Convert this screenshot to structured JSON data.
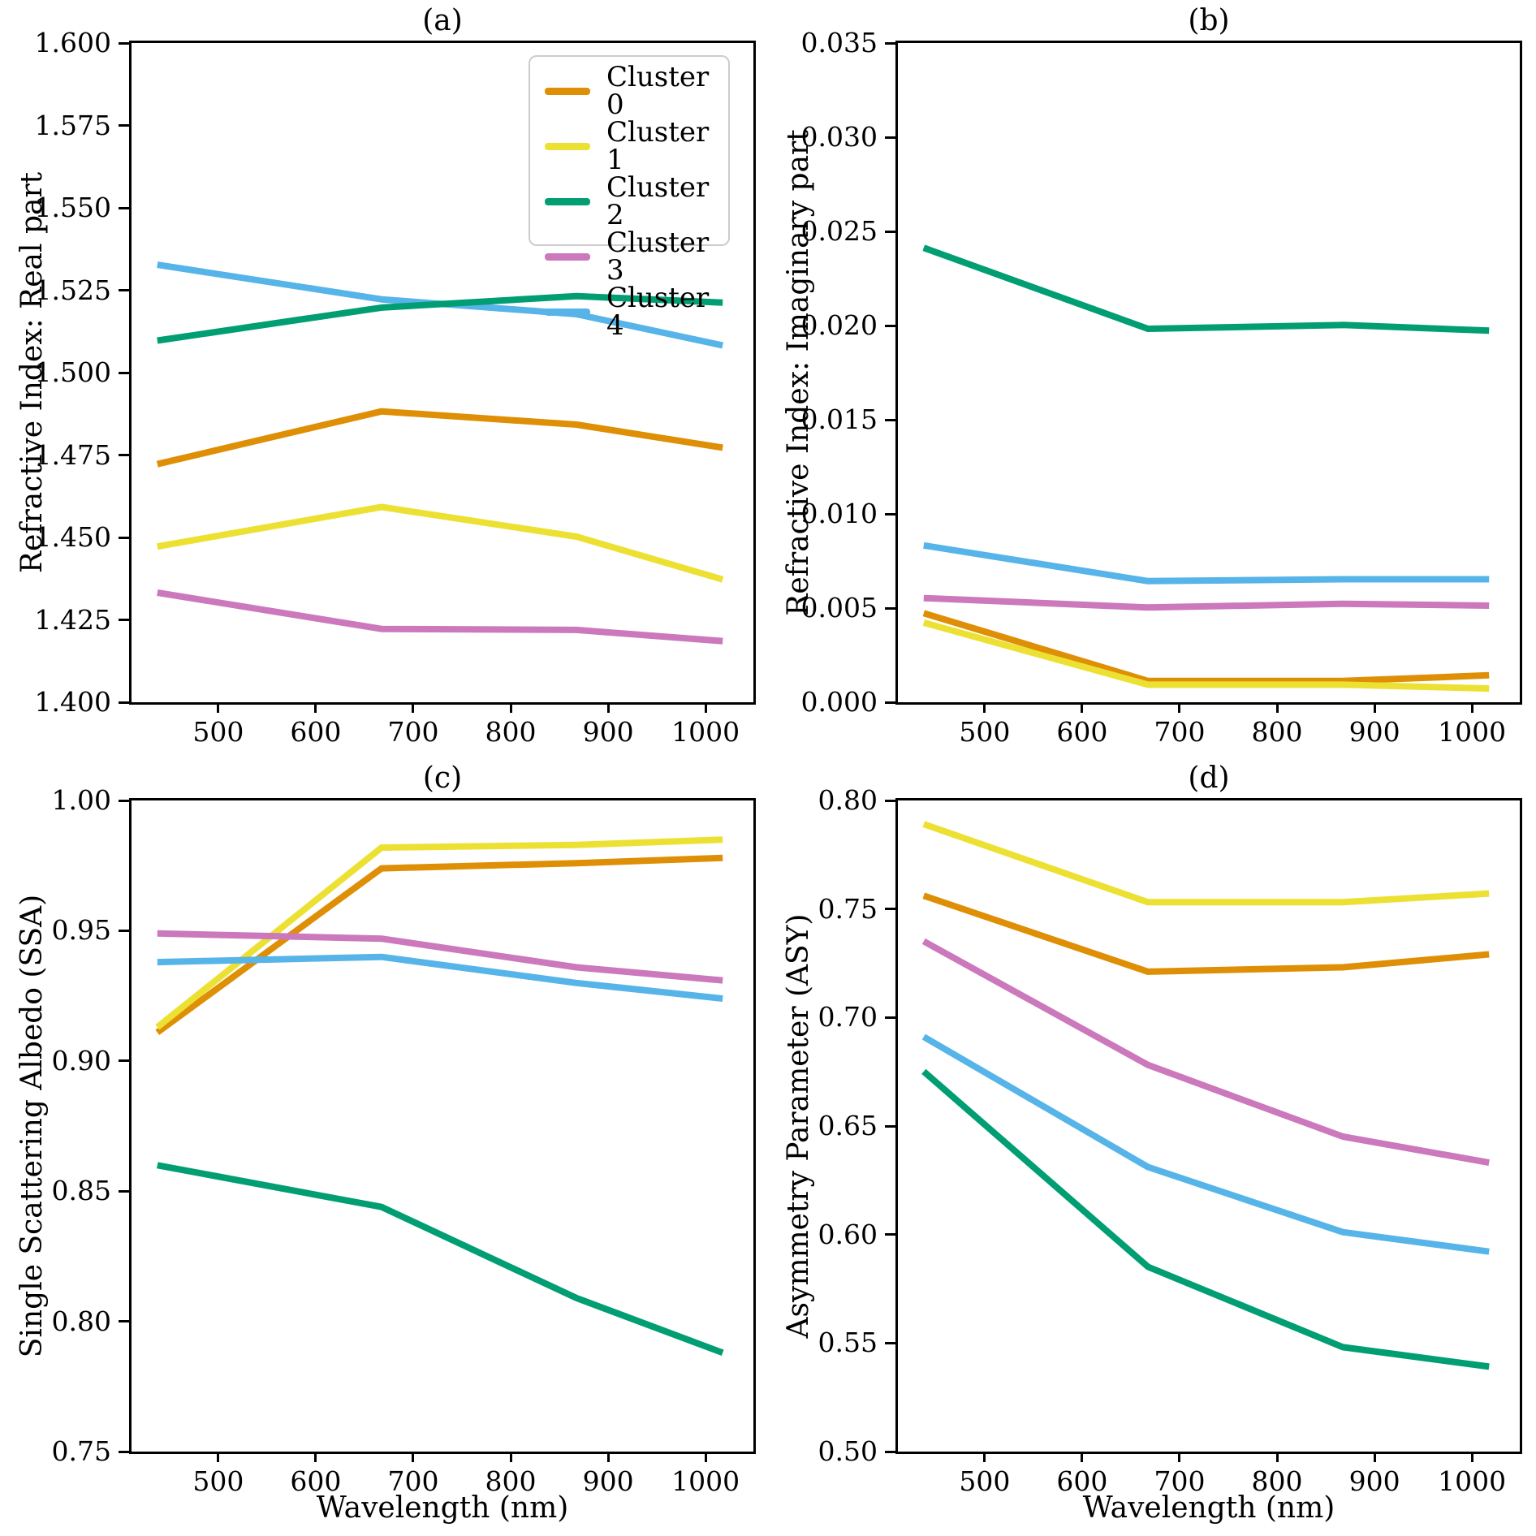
{
  "figure": {
    "background": "#ffffff",
    "text_color": "#000000"
  },
  "legend": {
    "position": "upper-right-panel-a",
    "items": [
      {
        "label": "Cluster 0",
        "color": "#DE8F05"
      },
      {
        "label": "Cluster 1",
        "color": "#ECE133"
      },
      {
        "label": "Cluster 2",
        "color": "#029E73"
      },
      {
        "label": "Cluster 3",
        "color": "#CC78BC"
      },
      {
        "label": "Cluster 4",
        "color": "#56B4E9"
      }
    ]
  },
  "chart_data": [
    {
      "id": "a",
      "type": "line",
      "title": "(a)",
      "ylabel": "Refractive Index: Real part",
      "xlabel": null,
      "x": [
        440,
        670,
        870,
        1020
      ],
      "xlim": [
        411,
        1049
      ],
      "ylim": [
        1.4,
        1.6
      ],
      "xticks": [
        "500",
        "600",
        "700",
        "800",
        "900",
        "1000"
      ],
      "yticks": [
        "1.400",
        "1.425",
        "1.450",
        "1.475",
        "1.500",
        "1.525",
        "1.550",
        "1.575",
        "1.600"
      ],
      "grid": false,
      "series": [
        {
          "name": "Cluster 0",
          "color": "#DE8F05",
          "values": [
            1.4715,
            1.4875,
            1.4835,
            1.4765
          ]
        },
        {
          "name": "Cluster 1",
          "color": "#ECE133",
          "values": [
            1.4465,
            1.4585,
            1.4495,
            1.4365
          ]
        },
        {
          "name": "Cluster 2",
          "color": "#029E73",
          "values": [
            1.509,
            1.519,
            1.5225,
            1.5205
          ]
        },
        {
          "name": "Cluster 3",
          "color": "#CC78BC",
          "values": [
            1.4325,
            1.4215,
            1.4212,
            1.4178
          ]
        },
        {
          "name": "Cluster 4",
          "color": "#56B4E9",
          "values": [
            1.532,
            1.5215,
            1.517,
            1.5075
          ]
        }
      ]
    },
    {
      "id": "b",
      "type": "line",
      "title": "(b)",
      "ylabel": "Refractive Index: Imaginary part",
      "xlabel": null,
      "x": [
        440,
        670,
        870,
        1020
      ],
      "xlim": [
        411,
        1049
      ],
      "ylim": [
        0.0,
        0.035
      ],
      "xticks": [
        "500",
        "600",
        "700",
        "800",
        "900",
        "1000"
      ],
      "yticks": [
        "0.000",
        "0.005",
        "0.010",
        "0.015",
        "0.020",
        "0.025",
        "0.030",
        "0.035"
      ],
      "grid": false,
      "series": [
        {
          "name": "Cluster 0",
          "color": "#DE8F05",
          "values": [
            0.0046,
            0.001,
            0.001,
            0.0013
          ]
        },
        {
          "name": "Cluster 1",
          "color": "#ECE133",
          "values": [
            0.0041,
            0.0008,
            0.0008,
            0.0006
          ]
        },
        {
          "name": "Cluster 2",
          "color": "#029E73",
          "values": [
            0.024,
            0.0197,
            0.0199,
            0.0196
          ]
        },
        {
          "name": "Cluster 3",
          "color": "#CC78BC",
          "values": [
            0.0054,
            0.0049,
            0.0051,
            0.005
          ]
        },
        {
          "name": "Cluster 4",
          "color": "#56B4E9",
          "values": [
            0.0082,
            0.0063,
            0.0064,
            0.0064
          ]
        }
      ]
    },
    {
      "id": "c",
      "type": "line",
      "title": "(c)",
      "ylabel": "Single Scattering Albedo (SSA)",
      "xlabel": "Wavelength (nm)",
      "x": [
        440,
        670,
        870,
        1020
      ],
      "xlim": [
        411,
        1049
      ],
      "ylim": [
        0.75,
        1.0
      ],
      "xticks": [
        "500",
        "600",
        "700",
        "800",
        "900",
        "1000"
      ],
      "yticks": [
        "0.75",
        "0.80",
        "0.85",
        "0.90",
        "0.95",
        "1.00"
      ],
      "grid": false,
      "series": [
        {
          "name": "Cluster 0",
          "color": "#DE8F05",
          "values": [
            0.91,
            0.973,
            0.975,
            0.977
          ]
        },
        {
          "name": "Cluster 1",
          "color": "#ECE133",
          "values": [
            0.912,
            0.981,
            0.982,
            0.984
          ]
        },
        {
          "name": "Cluster 2",
          "color": "#029E73",
          "values": [
            0.859,
            0.843,
            0.808,
            0.787
          ]
        },
        {
          "name": "Cluster 3",
          "color": "#CC78BC",
          "values": [
            0.948,
            0.946,
            0.935,
            0.93
          ]
        },
        {
          "name": "Cluster 4",
          "color": "#56B4E9",
          "values": [
            0.937,
            0.939,
            0.929,
            0.923
          ]
        }
      ]
    },
    {
      "id": "d",
      "type": "line",
      "title": "(d)",
      "ylabel": "Asymmetry Parameter (ASY)",
      "xlabel": "Wavelength (nm)",
      "x": [
        440,
        670,
        870,
        1020
      ],
      "xlim": [
        411,
        1049
      ],
      "ylim": [
        0.5,
        0.8
      ],
      "xticks": [
        "500",
        "600",
        "700",
        "800",
        "900",
        "1000"
      ],
      "yticks": [
        "0.50",
        "0.55",
        "0.60",
        "0.65",
        "0.70",
        "0.75",
        "0.80"
      ],
      "grid": false,
      "series": [
        {
          "name": "Cluster 0",
          "color": "#DE8F05",
          "values": [
            0.755,
            0.72,
            0.722,
            0.728
          ]
        },
        {
          "name": "Cluster 1",
          "color": "#ECE133",
          "values": [
            0.788,
            0.752,
            0.752,
            0.756
          ]
        },
        {
          "name": "Cluster 2",
          "color": "#029E73",
          "values": [
            0.674,
            0.584,
            0.547,
            0.538
          ]
        },
        {
          "name": "Cluster 3",
          "color": "#CC78BC",
          "values": [
            0.734,
            0.677,
            0.644,
            0.632
          ]
        },
        {
          "name": "Cluster 4",
          "color": "#56B4E9",
          "values": [
            0.69,
            0.63,
            0.6,
            0.591
          ]
        }
      ]
    }
  ]
}
